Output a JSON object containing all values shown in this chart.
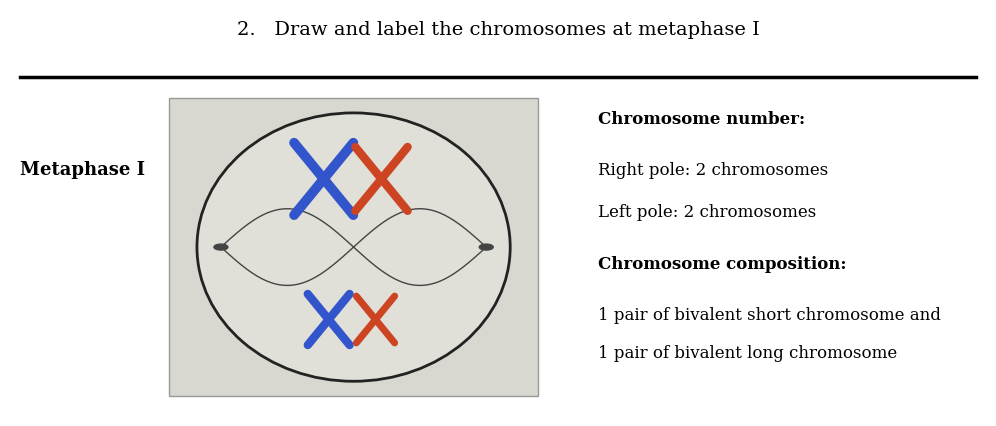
{
  "title": "2.   Draw and label the chromosomes at metaphase I",
  "label_left": "Metaphase I",
  "section_header": "Chromosome number:",
  "right_pole": "Right pole: 2 chromosomes",
  "left_pole": "Left pole: 2 chromosomes",
  "composition_header": "Chromosome composition:",
  "composition_line1": "1 pair of bivalent short chromosome and",
  "composition_line2": "1 pair of bivalent long chromosome",
  "bg_color": "#ffffff",
  "title_fontsize": 14,
  "label_fontsize": 13,
  "text_fontsize": 12,
  "header_fontsize": 12,
  "blue_color": "#3355cc",
  "orange_color": "#cc4422",
  "cell_bg": "#e0e0d8",
  "photo_bg": "#d8d8d0"
}
